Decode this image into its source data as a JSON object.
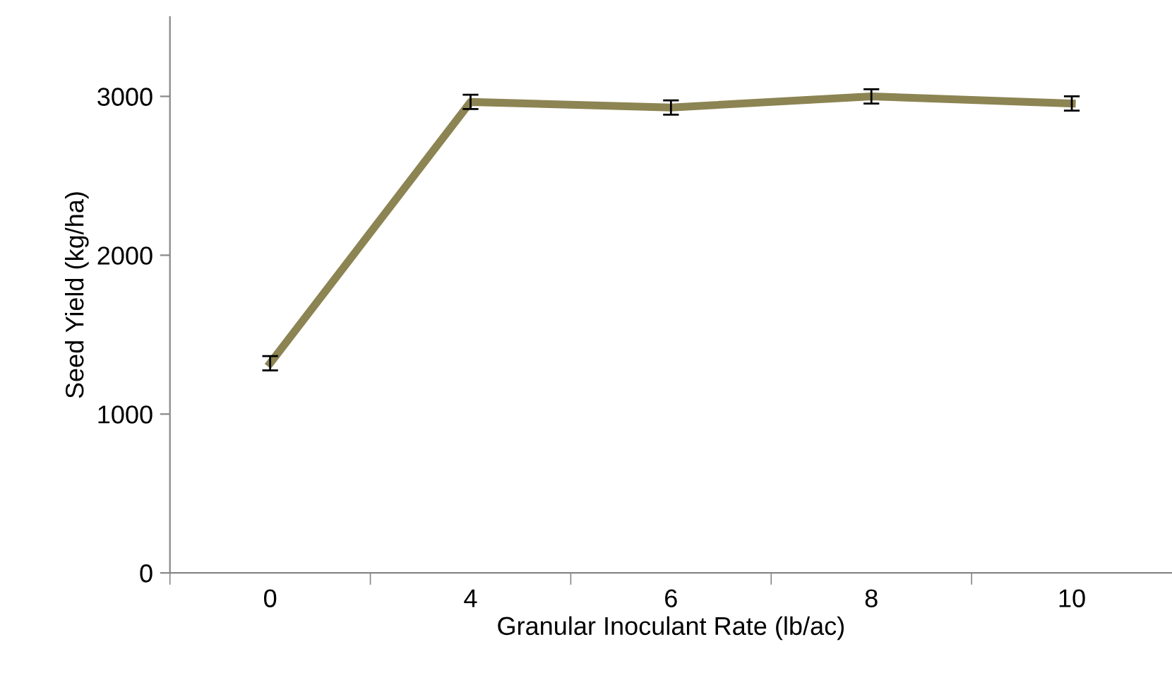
{
  "chart_data": {
    "type": "line",
    "xlabel": "Granular Inoculant Rate (lb/ac)",
    "ylabel": "Seed Yield (kg/ha)",
    "categories": [
      "0",
      "4",
      "6",
      "8",
      "10"
    ],
    "series": [
      {
        "color": "#8c8452",
        "values": [
          1320,
          2965,
          2930,
          3000,
          2955
        ],
        "errors": [
          45,
          45,
          45,
          45,
          45
        ]
      }
    ],
    "ylim": [
      0,
      3500
    ],
    "yticks": [
      0,
      1000,
      2000,
      3000
    ],
    "grid": false,
    "legend": false,
    "marker": "none",
    "line_style": "solid"
  }
}
